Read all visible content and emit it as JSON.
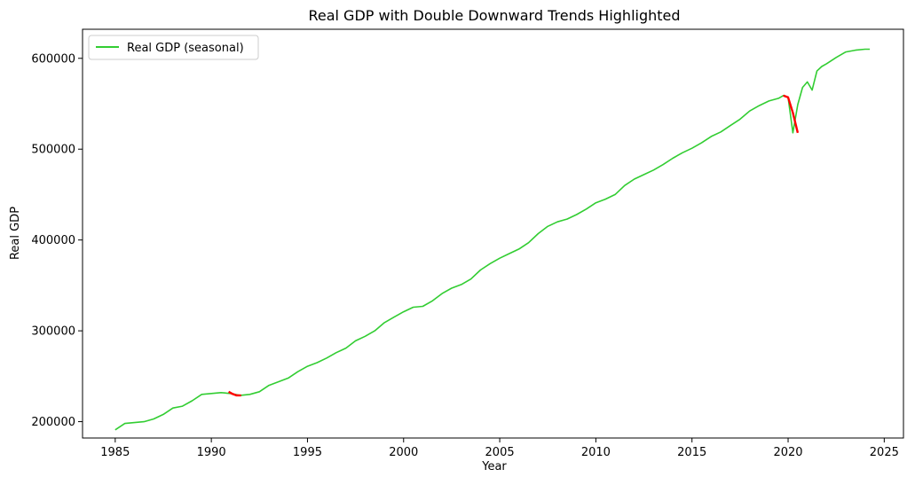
{
  "chart_data": {
    "type": "line",
    "title": "Real GDP with Double Downward Trends Highlighted",
    "xlabel": "Year",
    "ylabel": "Real GDP",
    "xlim": [
      1983.3,
      2026.0
    ],
    "ylim": [
      182000,
      632000
    ],
    "x_ticks": [
      1985,
      1990,
      1995,
      2000,
      2005,
      2010,
      2015,
      2020,
      2025
    ],
    "y_ticks": [
      200000,
      300000,
      400000,
      500000,
      600000
    ],
    "grid": false,
    "legend_position": "top-left",
    "series": [
      {
        "name": "Real GDP (seasonal)",
        "color": "#32cd32",
        "x": [
          1985.0,
          1985.5,
          1986.0,
          1986.5,
          1987.0,
          1987.5,
          1988.0,
          1988.5,
          1989.0,
          1989.5,
          1990.0,
          1990.5,
          1991.0,
          1991.5,
          1992.0,
          1992.5,
          1993.0,
          1993.5,
          1994.0,
          1994.5,
          1995.0,
          1995.5,
          1996.0,
          1996.5,
          1997.0,
          1997.5,
          1998.0,
          1998.5,
          1999.0,
          1999.5,
          2000.0,
          2000.5,
          2001.0,
          2001.5,
          2002.0,
          2002.5,
          2003.0,
          2003.5,
          2004.0,
          2004.5,
          2005.0,
          2005.5,
          2006.0,
          2006.5,
          2007.0,
          2007.5,
          2008.0,
          2008.5,
          2009.0,
          2009.5,
          2010.0,
          2010.5,
          2011.0,
          2011.5,
          2012.0,
          2012.5,
          2013.0,
          2013.5,
          2014.0,
          2014.5,
          2015.0,
          2015.5,
          2016.0,
          2016.5,
          2017.0,
          2017.5,
          2018.0,
          2018.5,
          2019.0,
          2019.5,
          2019.75,
          2020.0,
          2020.25,
          2020.5,
          2020.75,
          2021.0,
          2021.25,
          2021.5,
          2021.75,
          2022.0,
          2022.5,
          2023.0,
          2023.5,
          2024.0,
          2024.25
        ],
        "y": [
          191000,
          198000,
          199000,
          200000,
          203000,
          208000,
          215000,
          217000,
          223000,
          230000,
          231000,
          232000,
          231000,
          229000,
          230000,
          233000,
          240000,
          244000,
          248000,
          255000,
          261000,
          265000,
          270000,
          276000,
          281000,
          289000,
          294000,
          300000,
          309000,
          315000,
          321000,
          326000,
          327000,
          333000,
          341000,
          347000,
          351000,
          357000,
          367000,
          374000,
          380000,
          385000,
          390000,
          397000,
          407000,
          415000,
          420000,
          423000,
          428000,
          434000,
          441000,
          445000,
          450000,
          460000,
          467000,
          472000,
          477000,
          483000,
          490000,
          496000,
          501000,
          507000,
          514000,
          519000,
          526000,
          533000,
          542000,
          548000,
          553000,
          556000,
          559000,
          557000,
          518000,
          549000,
          568000,
          574000,
          565000,
          586000,
          591000,
          594000,
          601000,
          607000,
          609000,
          610000,
          610000
        ]
      },
      {
        "name": "",
        "color": "#ff0000",
        "x": [
          1990.9,
          1991.1,
          1991.3,
          1991.55
        ],
        "y": [
          233000,
          230500,
          229000,
          229000
        ]
      },
      {
        "name": "",
        "color": "#ff0000",
        "x": [
          2019.75,
          2020.0,
          2020.25,
          2020.5
        ],
        "y": [
          559000,
          557000,
          540000,
          518000
        ]
      }
    ]
  }
}
